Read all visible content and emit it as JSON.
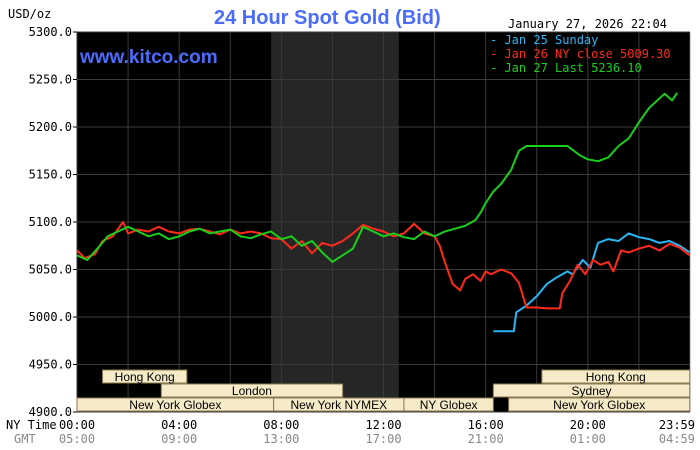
{
  "chart_data": {
    "type": "line",
    "title": "24 Hour Spot Gold (Bid)",
    "source": "www.kitco.com",
    "ylabel": "USD/oz",
    "timestamp": "January 27, 2026 22:04",
    "ylim": [
      4900,
      5300
    ],
    "y_ticks": [
      "5300.0",
      "5250.0",
      "5200.0",
      "5150.0",
      "5100.0",
      "5050.0",
      "5000.0",
      "4950.0",
      "4900.0"
    ],
    "x_row_label": "NY Time",
    "gmt_row_label": "GMT",
    "x_ticks": [
      "00:00",
      "04:00",
      "08:00",
      "12:00",
      "16:00",
      "20:00",
      "23:59"
    ],
    "gmt_ticks": [
      "05:00",
      "09:00",
      "13:00",
      "17:00",
      "21:00",
      "01:00",
      "04:59"
    ],
    "shaded_range_hours": [
      7.6,
      12.6
    ],
    "legend": [
      {
        "label": "Jan 25 Sunday",
        "color": "#29b6f6"
      },
      {
        "label": "Jan 26 NY close 5009.30",
        "color": "#ff2a1a"
      },
      {
        "label": "Jan 27 Last 5236.10",
        "color": "#19cf19"
      }
    ],
    "sessions": [
      {
        "label": "Hong Kong",
        "row": 0,
        "start": 1.0,
        "end": 4.3
      },
      {
        "label": "Hong Kong",
        "row": 0,
        "start": 18.2,
        "end": 23.99
      },
      {
        "label": "London",
        "row": 1,
        "start": 3.3,
        "end": 10.4
      },
      {
        "label": "Sydney",
        "row": 1,
        "start": 16.3,
        "end": 23.99
      },
      {
        "label": "New York Globex",
        "row": 2,
        "start": 0.0,
        "end": 7.7
      },
      {
        "label": "New York NYMEX",
        "row": 2,
        "start": 7.7,
        "end": 12.8
      },
      {
        "label": "NY Globex",
        "row": 2,
        "start": 12.8,
        "end": 16.3
      },
      {
        "label": "New York Globex",
        "row": 2,
        "start": 16.9,
        "end": 23.99
      }
    ],
    "series": [
      {
        "name": "Jan 25 Sunday",
        "color": "#29b6f6",
        "points": [
          [
            16.3,
            4985
          ],
          [
            17.1,
            4985
          ],
          [
            17.2,
            5005
          ],
          [
            17.6,
            5012
          ],
          [
            18.0,
            5022
          ],
          [
            18.4,
            5035
          ],
          [
            18.8,
            5042
          ],
          [
            19.2,
            5048
          ],
          [
            19.4,
            5045
          ],
          [
            19.8,
            5060
          ],
          [
            20.1,
            5052
          ],
          [
            20.4,
            5078
          ],
          [
            20.8,
            5082
          ],
          [
            21.2,
            5080
          ],
          [
            21.6,
            5088
          ],
          [
            22.0,
            5084
          ],
          [
            22.4,
            5082
          ],
          [
            22.8,
            5078
          ],
          [
            23.2,
            5080
          ],
          [
            23.6,
            5075
          ],
          [
            23.99,
            5068
          ]
        ]
      },
      {
        "name": "Jan 26 NY close 5009.30",
        "color": "#ff2a1a",
        "points": [
          [
            0.0,
            5070
          ],
          [
            0.3,
            5062
          ],
          [
            0.7,
            5066
          ],
          [
            1.0,
            5080
          ],
          [
            1.4,
            5085
          ],
          [
            1.8,
            5100
          ],
          [
            2.0,
            5088
          ],
          [
            2.4,
            5092
          ],
          [
            2.8,
            5090
          ],
          [
            3.2,
            5095
          ],
          [
            3.6,
            5090
          ],
          [
            4.0,
            5088
          ],
          [
            4.4,
            5092
          ],
          [
            4.8,
            5093
          ],
          [
            5.2,
            5090
          ],
          [
            5.6,
            5087
          ],
          [
            6.0,
            5092
          ],
          [
            6.4,
            5088
          ],
          [
            6.8,
            5090
          ],
          [
            7.2,
            5088
          ],
          [
            7.6,
            5083
          ],
          [
            8.0,
            5082
          ],
          [
            8.4,
            5072
          ],
          [
            8.8,
            5080
          ],
          [
            9.2,
            5067
          ],
          [
            9.6,
            5078
          ],
          [
            10.0,
            5075
          ],
          [
            10.4,
            5080
          ],
          [
            10.8,
            5088
          ],
          [
            11.2,
            5097
          ],
          [
            11.6,
            5093
          ],
          [
            12.0,
            5090
          ],
          [
            12.4,
            5085
          ],
          [
            12.8,
            5088
          ],
          [
            13.2,
            5098
          ],
          [
            13.6,
            5088
          ],
          [
            14.0,
            5085
          ],
          [
            14.2,
            5075
          ],
          [
            14.4,
            5058
          ],
          [
            14.7,
            5035
          ],
          [
            15.0,
            5028
          ],
          [
            15.2,
            5040
          ],
          [
            15.5,
            5045
          ],
          [
            15.8,
            5038
          ],
          [
            16.0,
            5048
          ],
          [
            16.2,
            5045
          ],
          [
            16.6,
            5050
          ],
          [
            17.0,
            5046
          ],
          [
            17.3,
            5036
          ],
          [
            17.6,
            5010
          ],
          [
            18.0,
            5010
          ],
          [
            18.4,
            5009
          ],
          [
            18.9,
            5009
          ],
          [
            19.0,
            5025
          ],
          [
            19.3,
            5038
          ],
          [
            19.6,
            5055
          ],
          [
            19.9,
            5045
          ],
          [
            20.2,
            5060
          ],
          [
            20.5,
            5055
          ],
          [
            20.8,
            5058
          ],
          [
            21.0,
            5048
          ],
          [
            21.3,
            5070
          ],
          [
            21.6,
            5068
          ],
          [
            22.0,
            5072
          ],
          [
            22.4,
            5075
          ],
          [
            22.8,
            5070
          ],
          [
            23.2,
            5077
          ],
          [
            23.6,
            5073
          ],
          [
            23.99,
            5065
          ]
        ]
      },
      {
        "name": "Jan 27 Last 5236.10",
        "color": "#19cf19",
        "points": [
          [
            0.0,
            5065
          ],
          [
            0.4,
            5060
          ],
          [
            0.8,
            5072
          ],
          [
            1.2,
            5085
          ],
          [
            1.6,
            5090
          ],
          [
            2.0,
            5095
          ],
          [
            2.4,
            5090
          ],
          [
            2.8,
            5085
          ],
          [
            3.2,
            5088
          ],
          [
            3.6,
            5082
          ],
          [
            4.0,
            5085
          ],
          [
            4.4,
            5090
          ],
          [
            4.8,
            5093
          ],
          [
            5.2,
            5088
          ],
          [
            5.6,
            5090
          ],
          [
            6.0,
            5092
          ],
          [
            6.4,
            5085
          ],
          [
            6.8,
            5083
          ],
          [
            7.2,
            5087
          ],
          [
            7.6,
            5090
          ],
          [
            8.0,
            5082
          ],
          [
            8.4,
            5085
          ],
          [
            8.8,
            5075
          ],
          [
            9.2,
            5080
          ],
          [
            9.6,
            5068
          ],
          [
            10.0,
            5058
          ],
          [
            10.4,
            5065
          ],
          [
            10.8,
            5072
          ],
          [
            11.2,
            5095
          ],
          [
            11.6,
            5090
          ],
          [
            12.0,
            5085
          ],
          [
            12.4,
            5088
          ],
          [
            12.8,
            5084
          ],
          [
            13.2,
            5082
          ],
          [
            13.6,
            5090
          ],
          [
            14.0,
            5085
          ],
          [
            14.4,
            5090
          ],
          [
            14.8,
            5093
          ],
          [
            15.2,
            5096
          ],
          [
            15.6,
            5102
          ],
          [
            15.8,
            5110
          ],
          [
            16.0,
            5120
          ],
          [
            16.3,
            5132
          ],
          [
            16.6,
            5140
          ],
          [
            17.0,
            5155
          ],
          [
            17.3,
            5175
          ],
          [
            17.6,
            5180
          ],
          [
            18.0,
            5180
          ],
          [
            18.6,
            5180
          ],
          [
            19.2,
            5180
          ],
          [
            19.4,
            5176
          ],
          [
            19.7,
            5170
          ],
          [
            20.0,
            5166
          ],
          [
            20.4,
            5164
          ],
          [
            20.8,
            5168
          ],
          [
            21.2,
            5180
          ],
          [
            21.6,
            5188
          ],
          [
            22.0,
            5205
          ],
          [
            22.4,
            5220
          ],
          [
            22.6,
            5225
          ],
          [
            23.0,
            5235
          ],
          [
            23.3,
            5228
          ],
          [
            23.5,
            5236
          ]
        ]
      }
    ]
  }
}
